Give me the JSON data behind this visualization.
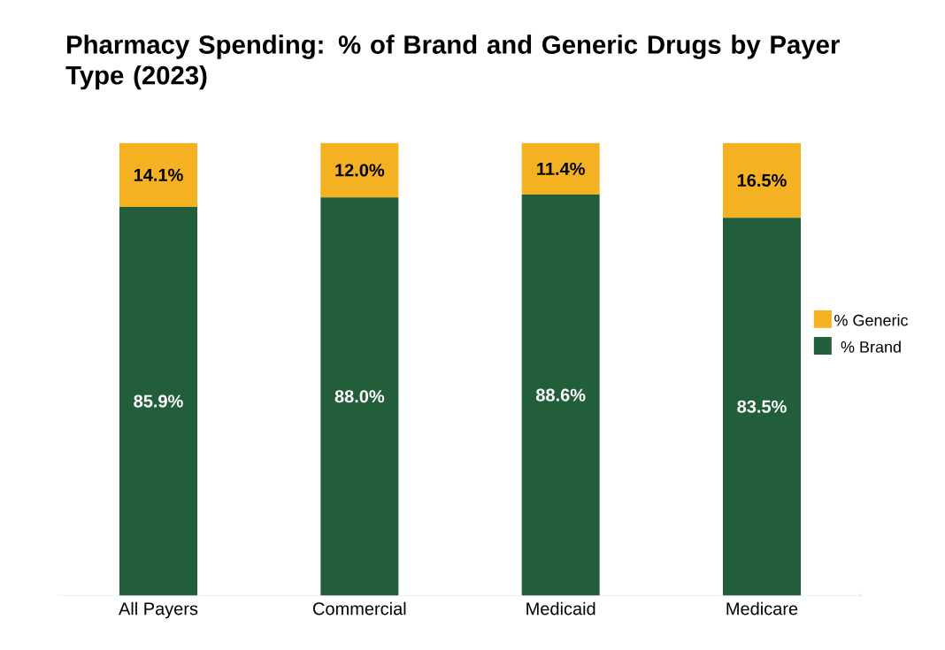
{
  "chart_data": {
    "type": "bar",
    "title": "Pharmacy Spending: % of Brand and Generic Drugs by Payer Type (2023)",
    "categories": [
      "All Payers",
      "Commercial",
      "Medicaid",
      "Medicare"
    ],
    "stacked": true,
    "legend": "right",
    "series": [
      {
        "name": "% Brand",
        "color": "#235e3b",
        "values": [
          85.9,
          88.0,
          88.6,
          83.5
        ],
        "value_labels": [
          "85.9%",
          "88.0%",
          "88.6%",
          "83.5%"
        ]
      },
      {
        "name": "% Generic",
        "color": "#f4b223",
        "values": [
          14.1,
          12.0,
          11.4,
          16.5
        ],
        "value_labels": [
          "14.1%",
          "12.0%",
          "11.4%",
          "16.5%"
        ]
      }
    ]
  }
}
